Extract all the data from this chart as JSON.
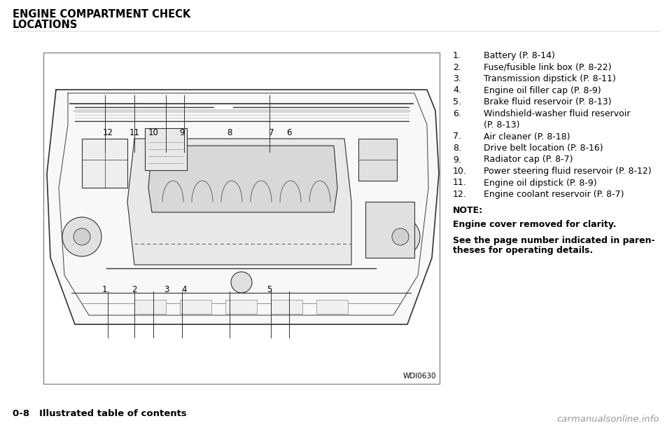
{
  "bg_color": "#ffffff",
  "title_line1": "ENGINE COMPARTMENT CHECK",
  "title_line2": "LOCATIONS",
  "title_fontsize": 10.5,
  "list_items": [
    {
      "num": "1.",
      "text": "Battery (P. 8-14)"
    },
    {
      "num": "2.",
      "text": "Fuse/fusible link box (P. 8-22)"
    },
    {
      "num": "3.",
      "text": "Transmission dipstick (P. 8-11)"
    },
    {
      "num": "4.",
      "text": "Engine oil filler cap (P. 8-9)"
    },
    {
      "num": "5.",
      "text": "Brake fluid reservoir (P. 8-13)"
    },
    {
      "num": "6.",
      "text": "Windshield-washer fluid reservoir",
      "text2": "(P. 8-13)"
    },
    {
      "num": "7.",
      "text": "Air cleaner (P. 8-18)"
    },
    {
      "num": "8.",
      "text": "Drive belt location (P. 8-16)"
    },
    {
      "num": "9.",
      "text": "Radiator cap (P. 8-7)"
    },
    {
      "num": "10.",
      "text": "Power steering fluid reservoir (P. 8-12)"
    },
    {
      "num": "11.",
      "text": "Engine oil dipstick (P. 8-9)"
    },
    {
      "num": "12.",
      "text": "Engine coolant reservoir (P. 8-7)"
    }
  ],
  "note_label": "NOTE:",
  "note_line1": "Engine cover removed for clarity.",
  "note_line2a": "See the page number indicated in paren-",
  "note_line2b": "theses for operating details.",
  "footer_left": "0-8   Illustrated table of contents",
  "footer_right": "carmanualsonline.info",
  "image_label": "WDI0630",
  "list_fontsize": 9.0,
  "note_fontsize": 9.0,
  "top_labels": [
    {
      "text": "1",
      "xf": 0.155,
      "yf": 0.285
    },
    {
      "text": "2",
      "xf": 0.23,
      "yf": 0.285
    },
    {
      "text": "3",
      "xf": 0.31,
      "yf": 0.285
    },
    {
      "text": "4",
      "xf": 0.355,
      "yf": 0.285
    },
    {
      "text": "5",
      "xf": 0.57,
      "yf": 0.285
    }
  ],
  "bottom_labels": [
    {
      "text": "12",
      "xf": 0.163,
      "yf": 0.758
    },
    {
      "text": "11",
      "xf": 0.23,
      "yf": 0.758
    },
    {
      "text": "10",
      "xf": 0.278,
      "yf": 0.758
    },
    {
      "text": "9",
      "xf": 0.35,
      "yf": 0.758
    },
    {
      "text": "8",
      "xf": 0.47,
      "yf": 0.758
    },
    {
      "text": "7",
      "xf": 0.575,
      "yf": 0.758
    },
    {
      "text": "6",
      "xf": 0.62,
      "yf": 0.758
    }
  ]
}
